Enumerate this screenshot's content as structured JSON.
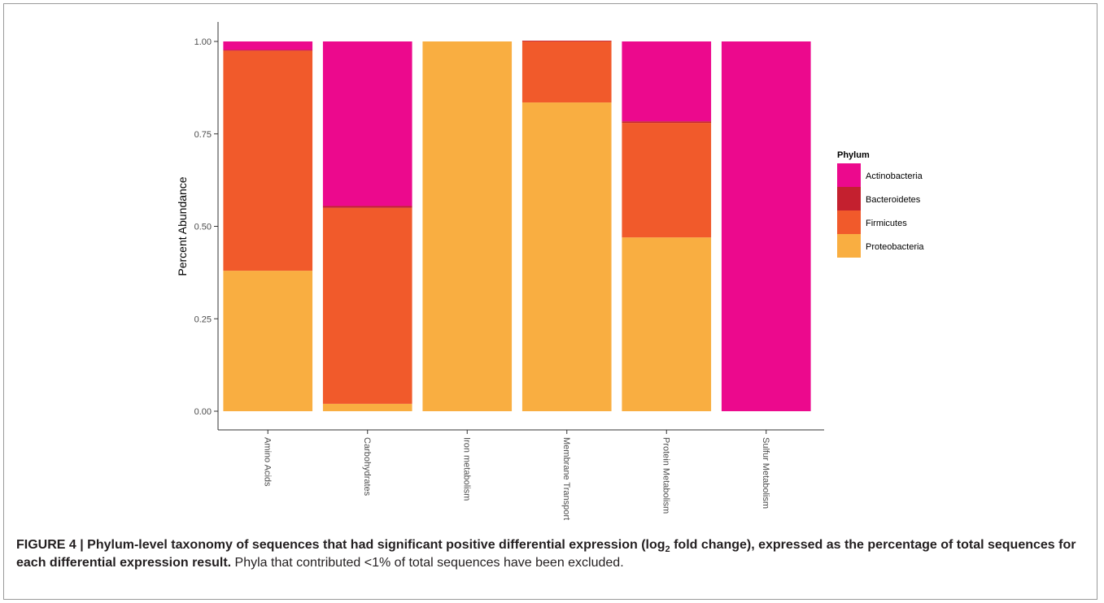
{
  "chart_data": {
    "type": "bar",
    "stacked": true,
    "categories": [
      "Amino Acids",
      "Carbohydrates",
      "Iron metabolism",
      "Membrane Transport",
      "Protein Metabolism",
      "Sulfur Metabolism"
    ],
    "series": [
      {
        "name": "Proteobacteria",
        "color": "#F9AE41",
        "values": [
          0.38,
          0.02,
          1.0,
          0.835,
          0.47,
          0.0
        ]
      },
      {
        "name": "Firmicutes",
        "color": "#F15A2B",
        "values": [
          0.595,
          0.53,
          0.0,
          0.165,
          0.31,
          0.0
        ]
      },
      {
        "name": "Bacteroidetes",
        "color": "#C4202F",
        "values": [
          0.002,
          0.005,
          0.0,
          0.002,
          0.004,
          0.0
        ]
      },
      {
        "name": "Actinobacteria",
        "color": "#EC098D",
        "values": [
          0.023,
          0.445,
          0.0,
          0.0,
          0.216,
          1.0
        ]
      }
    ],
    "legend_order": [
      "Actinobacteria",
      "Bacteroidetes",
      "Firmicutes",
      "Proteobacteria"
    ],
    "legend_title": "Phylum",
    "legend_position": "right",
    "xlabel": "",
    "ylabel": "Percent Abundance",
    "ylim": [
      0,
      1
    ],
    "yticks": [
      "0.00",
      "0.25",
      "0.50",
      "0.75",
      "1.00"
    ],
    "grid": false
  },
  "caption": {
    "bold_part_1": "FIGURE 4 | Phylum-level taxonomy of sequences that had significant positive differential expression (log",
    "subscript": "2",
    "bold_part_2": " fold change), expressed as the percentage of total sequences for each differential expression result.",
    "normal_part": " Phyla that contributed <1% of total sequences have been excluded."
  }
}
